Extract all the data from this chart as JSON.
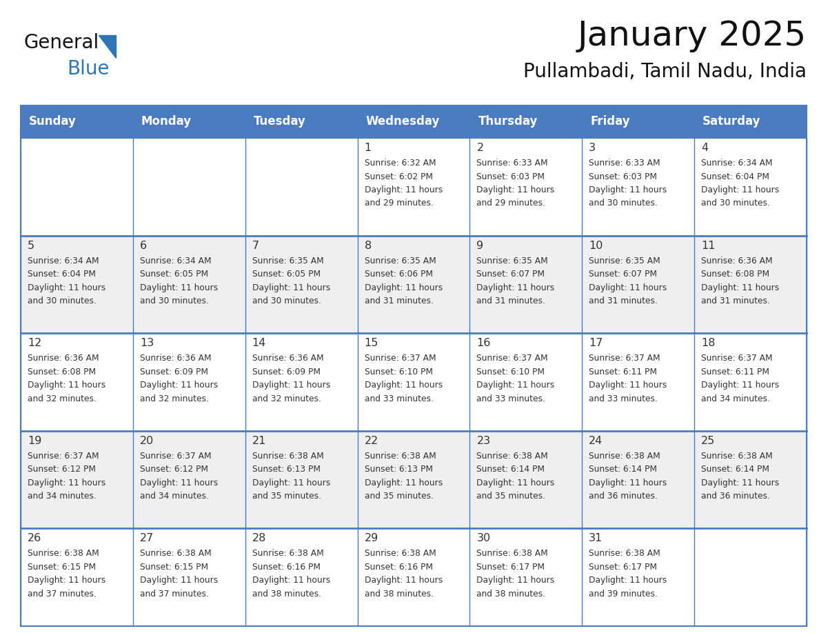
{
  "title": "January 2025",
  "subtitle": "Pullambadi, Tamil Nadu, India",
  "days_of_week": [
    "Sunday",
    "Monday",
    "Tuesday",
    "Wednesday",
    "Thursday",
    "Friday",
    "Saturday"
  ],
  "header_bg": "#4b7bbf",
  "header_text": "#FFFFFF",
  "cell_bg_odd": "#EFEFEF",
  "cell_bg_even": "#FFFFFF",
  "cell_border_color": "#4b7bbf",
  "day_number_color": "#333333",
  "text_color": "#333333",
  "title_color": "#111111",
  "logo_general_color": "#111111",
  "logo_blue_color": "#2E75B6",
  "logo_triangle_color": "#2E75B6",
  "weeks": [
    [
      {
        "day": null,
        "sunrise": null,
        "sunset": null,
        "daylight_h": null,
        "daylight_m": null
      },
      {
        "day": null,
        "sunrise": null,
        "sunset": null,
        "daylight_h": null,
        "daylight_m": null
      },
      {
        "day": null,
        "sunrise": null,
        "sunset": null,
        "daylight_h": null,
        "daylight_m": null
      },
      {
        "day": 1,
        "sunrise": "6:32 AM",
        "sunset": "6:02 PM",
        "daylight_h": "11 hours",
        "daylight_m": "and 29 minutes."
      },
      {
        "day": 2,
        "sunrise": "6:33 AM",
        "sunset": "6:03 PM",
        "daylight_h": "11 hours",
        "daylight_m": "and 29 minutes."
      },
      {
        "day": 3,
        "sunrise": "6:33 AM",
        "sunset": "6:03 PM",
        "daylight_h": "11 hours",
        "daylight_m": "and 30 minutes."
      },
      {
        "day": 4,
        "sunrise": "6:34 AM",
        "sunset": "6:04 PM",
        "daylight_h": "11 hours",
        "daylight_m": "and 30 minutes."
      }
    ],
    [
      {
        "day": 5,
        "sunrise": "6:34 AM",
        "sunset": "6:04 PM",
        "daylight_h": "11 hours",
        "daylight_m": "and 30 minutes."
      },
      {
        "day": 6,
        "sunrise": "6:34 AM",
        "sunset": "6:05 PM",
        "daylight_h": "11 hours",
        "daylight_m": "and 30 minutes."
      },
      {
        "day": 7,
        "sunrise": "6:35 AM",
        "sunset": "6:05 PM",
        "daylight_h": "11 hours",
        "daylight_m": "and 30 minutes."
      },
      {
        "day": 8,
        "sunrise": "6:35 AM",
        "sunset": "6:06 PM",
        "daylight_h": "11 hours",
        "daylight_m": "and 31 minutes."
      },
      {
        "day": 9,
        "sunrise": "6:35 AM",
        "sunset": "6:07 PM",
        "daylight_h": "11 hours",
        "daylight_m": "and 31 minutes."
      },
      {
        "day": 10,
        "sunrise": "6:35 AM",
        "sunset": "6:07 PM",
        "daylight_h": "11 hours",
        "daylight_m": "and 31 minutes."
      },
      {
        "day": 11,
        "sunrise": "6:36 AM",
        "sunset": "6:08 PM",
        "daylight_h": "11 hours",
        "daylight_m": "and 31 minutes."
      }
    ],
    [
      {
        "day": 12,
        "sunrise": "6:36 AM",
        "sunset": "6:08 PM",
        "daylight_h": "11 hours",
        "daylight_m": "and 32 minutes."
      },
      {
        "day": 13,
        "sunrise": "6:36 AM",
        "sunset": "6:09 PM",
        "daylight_h": "11 hours",
        "daylight_m": "and 32 minutes."
      },
      {
        "day": 14,
        "sunrise": "6:36 AM",
        "sunset": "6:09 PM",
        "daylight_h": "11 hours",
        "daylight_m": "and 32 minutes."
      },
      {
        "day": 15,
        "sunrise": "6:37 AM",
        "sunset": "6:10 PM",
        "daylight_h": "11 hours",
        "daylight_m": "and 33 minutes."
      },
      {
        "day": 16,
        "sunrise": "6:37 AM",
        "sunset": "6:10 PM",
        "daylight_h": "11 hours",
        "daylight_m": "and 33 minutes."
      },
      {
        "day": 17,
        "sunrise": "6:37 AM",
        "sunset": "6:11 PM",
        "daylight_h": "11 hours",
        "daylight_m": "and 33 minutes."
      },
      {
        "day": 18,
        "sunrise": "6:37 AM",
        "sunset": "6:11 PM",
        "daylight_h": "11 hours",
        "daylight_m": "and 34 minutes."
      }
    ],
    [
      {
        "day": 19,
        "sunrise": "6:37 AM",
        "sunset": "6:12 PM",
        "daylight_h": "11 hours",
        "daylight_m": "and 34 minutes."
      },
      {
        "day": 20,
        "sunrise": "6:37 AM",
        "sunset": "6:12 PM",
        "daylight_h": "11 hours",
        "daylight_m": "and 34 minutes."
      },
      {
        "day": 21,
        "sunrise": "6:38 AM",
        "sunset": "6:13 PM",
        "daylight_h": "11 hours",
        "daylight_m": "and 35 minutes."
      },
      {
        "day": 22,
        "sunrise": "6:38 AM",
        "sunset": "6:13 PM",
        "daylight_h": "11 hours",
        "daylight_m": "and 35 minutes."
      },
      {
        "day": 23,
        "sunrise": "6:38 AM",
        "sunset": "6:14 PM",
        "daylight_h": "11 hours",
        "daylight_m": "and 35 minutes."
      },
      {
        "day": 24,
        "sunrise": "6:38 AM",
        "sunset": "6:14 PM",
        "daylight_h": "11 hours",
        "daylight_m": "and 36 minutes."
      },
      {
        "day": 25,
        "sunrise": "6:38 AM",
        "sunset": "6:14 PM",
        "daylight_h": "11 hours",
        "daylight_m": "and 36 minutes."
      }
    ],
    [
      {
        "day": 26,
        "sunrise": "6:38 AM",
        "sunset": "6:15 PM",
        "daylight_h": "11 hours",
        "daylight_m": "and 37 minutes."
      },
      {
        "day": 27,
        "sunrise": "6:38 AM",
        "sunset": "6:15 PM",
        "daylight_h": "11 hours",
        "daylight_m": "and 37 minutes."
      },
      {
        "day": 28,
        "sunrise": "6:38 AM",
        "sunset": "6:16 PM",
        "daylight_h": "11 hours",
        "daylight_m": "and 38 minutes."
      },
      {
        "day": 29,
        "sunrise": "6:38 AM",
        "sunset": "6:16 PM",
        "daylight_h": "11 hours",
        "daylight_m": "and 38 minutes."
      },
      {
        "day": 30,
        "sunrise": "6:38 AM",
        "sunset": "6:17 PM",
        "daylight_h": "11 hours",
        "daylight_m": "and 38 minutes."
      },
      {
        "day": 31,
        "sunrise": "6:38 AM",
        "sunset": "6:17 PM",
        "daylight_h": "11 hours",
        "daylight_m": "and 39 minutes."
      },
      {
        "day": null,
        "sunrise": null,
        "sunset": null,
        "daylight_h": null,
        "daylight_m": null
      }
    ]
  ]
}
